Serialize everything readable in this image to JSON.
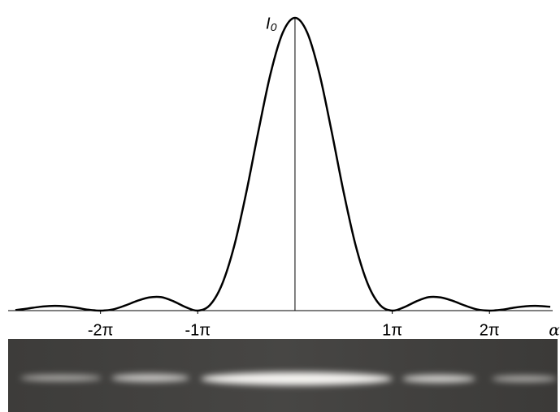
{
  "chart_data": {
    "type": "line",
    "y_label": "I₀",
    "x_label": "α",
    "x": [
      -2.875,
      -2.75,
      -2.625,
      -2.5,
      -2.375,
      -2.25,
      -2.125,
      -2,
      -1.875,
      -1.75,
      -1.625,
      -1.5,
      -1.375,
      -1.25,
      -1.125,
      -1,
      -0.875,
      -0.75,
      -0.625,
      -0.5,
      -0.375,
      -0.25,
      -0.125,
      0,
      0.125,
      0.25,
      0.375,
      0.5,
      0.625,
      0.75,
      0.875,
      1,
      1.125,
      1.25,
      1.375,
      1.5,
      1.625,
      1.75,
      1.875,
      2,
      2.125,
      2.25,
      2.375,
      2.5,
      2.625
    ],
    "series": [
      {
        "color": "#000000",
        "values": [
          0.002,
          0.007,
          0.013,
          0.016,
          0.015,
          0.01,
          0.003,
          0,
          0.004,
          0.017,
          0.033,
          0.045,
          0.046,
          0.032,
          0.012,
          0,
          0.019,
          0.09,
          0.221,
          0.405,
          0.615,
          0.811,
          0.95,
          1,
          0.95,
          0.811,
          0.615,
          0.405,
          0.221,
          0.09,
          0.019,
          0,
          0.012,
          0.032,
          0.046,
          0.045,
          0.033,
          0.017,
          0.004,
          0,
          0.003,
          0.01,
          0.015,
          0.016,
          0.013
        ]
      }
    ],
    "xlim": [
      -2.95,
      2.65
    ],
    "ylim": [
      0,
      1
    ],
    "xticks": [
      {
        "value": -2,
        "label": "-2π"
      },
      {
        "value": -1,
        "label": "-1π"
      },
      {
        "value": 1,
        "label": "1π"
      },
      {
        "value": 2,
        "label": "2π"
      }
    ]
  }
}
